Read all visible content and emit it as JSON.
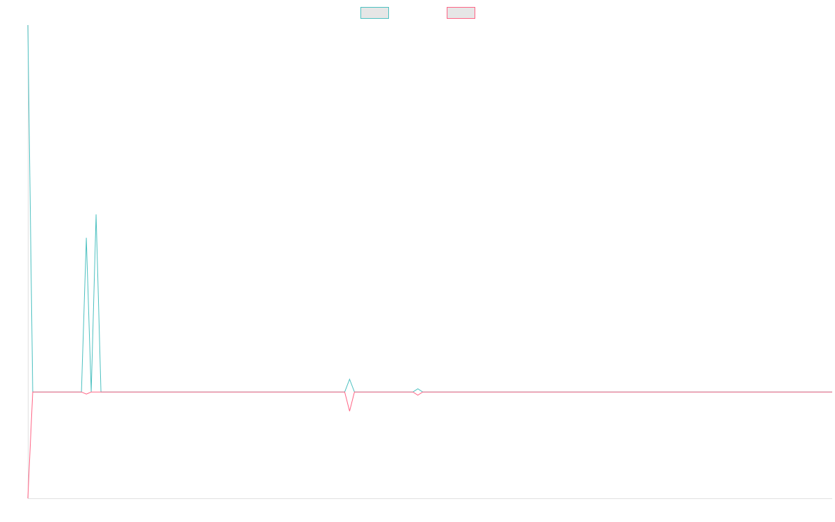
{
  "chart_data": {
    "type": "line",
    "title": "",
    "xlabel": "",
    "ylabel": "",
    "x_count": 166,
    "ylim": [
      -1,
      3.45
    ],
    "grid": false,
    "legend": "top-center",
    "series": [
      {
        "name": "",
        "color": "#4bc0c0",
        "fill": "#e6e6e6",
        "points": [
          [
            0,
            3.45
          ],
          [
            1,
            0
          ],
          [
            11,
            0
          ],
          [
            12,
            1.45
          ],
          [
            13,
            0
          ],
          [
            14,
            1.67
          ],
          [
            15,
            0
          ],
          [
            65,
            0
          ],
          [
            66,
            0.12
          ],
          [
            67,
            0
          ],
          [
            79,
            0
          ],
          [
            80,
            0.03
          ],
          [
            81,
            0
          ],
          [
            165,
            0
          ]
        ]
      },
      {
        "name": "",
        "color": "#ff6384",
        "fill": "#e6e6e6",
        "points": [
          [
            0,
            -1
          ],
          [
            1,
            0
          ],
          [
            11,
            0
          ],
          [
            12,
            -0.02
          ],
          [
            13,
            0
          ],
          [
            65,
            0
          ],
          [
            66,
            -0.18
          ],
          [
            67,
            0
          ],
          [
            79,
            0
          ],
          [
            80,
            -0.03
          ],
          [
            81,
            0
          ],
          [
            165,
            0
          ]
        ]
      }
    ]
  }
}
